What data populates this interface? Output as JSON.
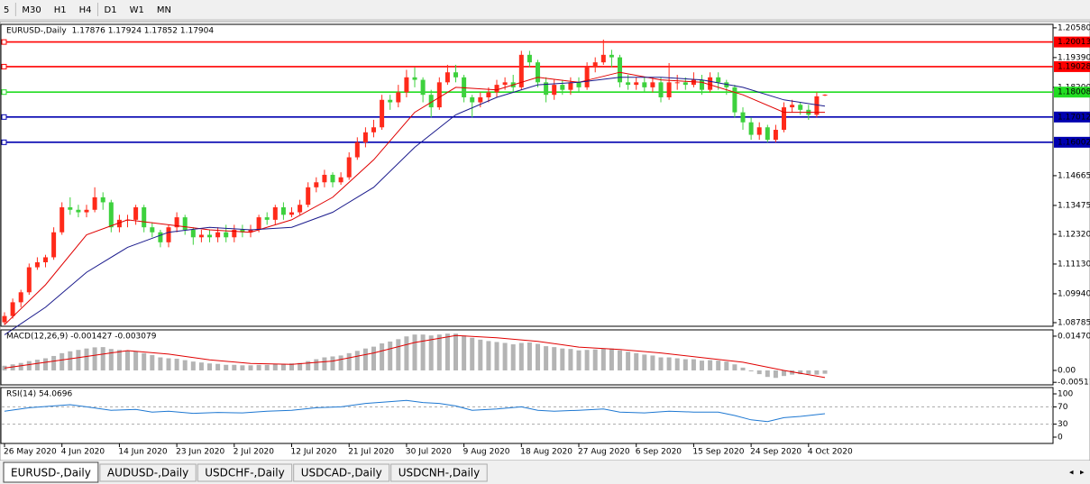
{
  "toolbar": {
    "timeframes": [
      "5",
      "M30",
      "H1",
      "H4",
      "D1",
      "W1",
      "MN"
    ]
  },
  "tabs": [
    "EURUSD-,Daily",
    "AUDUSD-,Daily",
    "USDCHF-,Daily",
    "USDCAD-,Daily",
    "USDCNH-,Daily"
  ],
  "chart_data": [
    {
      "type": "candlestick",
      "title": "EURUSD-,Daily",
      "quote": "1.17876 1.17924 1.17852 1.17904",
      "up_color": "#ff2a1a",
      "down_color": "#3dd13d",
      "xlim": [
        -0.55,
        127.8
      ],
      "ylim": [
        1.0864,
        1.2072
      ],
      "yticks": [
        {
          "value": 1.2058,
          "label": "1.20580"
        },
        {
          "value": 1.1939,
          "label": "1.19390"
        },
        {
          "value": 1.182,
          "label": "1.18200"
        },
        {
          "value": 1.14665,
          "label": "1.14665"
        },
        {
          "value": 1.13475,
          "label": "1.13475"
        },
        {
          "value": 1.1232,
          "label": "1.12320"
        },
        {
          "value": 1.1113,
          "label": "1.11130"
        },
        {
          "value": 1.0994,
          "label": "1.09940"
        },
        1.08785
      ],
      "xticks": [
        {
          "value": 0,
          "label": "26 May 2020"
        },
        {
          "value": 7,
          "label": "4 Jun 2020"
        },
        {
          "value": 14,
          "label": "14 Jun 2020"
        },
        {
          "value": 21,
          "label": "23 Jun 2020"
        },
        {
          "value": 28,
          "label": "2 Jul 2020"
        },
        {
          "value": 35,
          "label": "12 Jul 2020"
        },
        {
          "value": 42,
          "label": "21 Jul 2020"
        },
        {
          "value": 49,
          "label": "30 Jul 2020"
        },
        {
          "value": 56,
          "label": "9 Aug 2020"
        },
        {
          "value": 63,
          "label": "18 Aug 2020"
        },
        {
          "value": 70,
          "label": "27 Aug 2020"
        },
        {
          "value": 77,
          "label": "6 Sep 2020"
        },
        {
          "value": 84,
          "label": "15 Sep 2020"
        },
        {
          "value": 91,
          "label": "24 Sep 2020"
        },
        {
          "value": 98,
          "label": "4 Oct 2020"
        }
      ],
      "levels": [
        {
          "value": 1.20013,
          "color": "#ff0000"
        },
        {
          "value": 1.19028,
          "color": "#ff0000"
        },
        {
          "value": 1.18008,
          "color": "#22dd22"
        },
        {
          "value": 1.17012,
          "color": "#0000b0"
        },
        {
          "value": 1.16002,
          "color": "#0000b0"
        }
      ],
      "candles": [
        [
          1.088,
          1.092,
          1.087,
          1.0905
        ],
        [
          1.0905,
          1.0975,
          1.0895,
          1.096
        ],
        [
          1.096,
          1.101,
          1.094,
          1.1
        ],
        [
          1.1,
          1.1115,
          1.099,
          1.11
        ],
        [
          1.11,
          1.114,
          1.109,
          1.112
        ],
        [
          1.112,
          1.115,
          1.11,
          1.114
        ],
        [
          1.114,
          1.126,
          1.113,
          1.124
        ],
        [
          1.124,
          1.136,
          1.123,
          1.134
        ],
        [
          1.134,
          1.138,
          1.131,
          1.133
        ],
        [
          1.133,
          1.135,
          1.13,
          1.132
        ],
        [
          1.132,
          1.135,
          1.13,
          1.133
        ],
        [
          1.133,
          1.142,
          1.132,
          1.138
        ],
        [
          1.138,
          1.14,
          1.133,
          1.136
        ],
        [
          1.136,
          1.137,
          1.124,
          1.126
        ],
        [
          1.126,
          1.131,
          1.124,
          1.129
        ],
        [
          1.129,
          1.131,
          1.126,
          1.129
        ],
        [
          1.129,
          1.135,
          1.127,
          1.134
        ],
        [
          1.134,
          1.135,
          1.124,
          1.126
        ],
        [
          1.126,
          1.128,
          1.122,
          1.124
        ],
        [
          1.124,
          1.125,
          1.118,
          1.12
        ],
        [
          1.12,
          1.127,
          1.118,
          1.126
        ],
        [
          1.126,
          1.132,
          1.124,
          1.13
        ],
        [
          1.13,
          1.131,
          1.123,
          1.125
        ],
        [
          1.125,
          1.126,
          1.119,
          1.122
        ],
        [
          1.122,
          1.125,
          1.12,
          1.123
        ],
        [
          1.123,
          1.125,
          1.12,
          1.122
        ],
        [
          1.122,
          1.126,
          1.12,
          1.124
        ],
        [
          1.124,
          1.127,
          1.12,
          1.122
        ],
        [
          1.122,
          1.127,
          1.12,
          1.125
        ],
        [
          1.125,
          1.127,
          1.122,
          1.124
        ],
        [
          1.124,
          1.127,
          1.122,
          1.125
        ],
        [
          1.125,
          1.131,
          1.124,
          1.13
        ],
        [
          1.13,
          1.132,
          1.127,
          1.129
        ],
        [
          1.129,
          1.135,
          1.127,
          1.134
        ],
        [
          1.134,
          1.136,
          1.129,
          1.131
        ],
        [
          1.131,
          1.134,
          1.13,
          1.132
        ],
        [
          1.132,
          1.137,
          1.131,
          1.135
        ],
        [
          1.135,
          1.144,
          1.134,
          1.142
        ],
        [
          1.142,
          1.146,
          1.14,
          1.144
        ],
        [
          1.144,
          1.149,
          1.142,
          1.147
        ],
        [
          1.147,
          1.148,
          1.142,
          1.144
        ],
        [
          1.144,
          1.148,
          1.143,
          1.146
        ],
        [
          1.146,
          1.156,
          1.145,
          1.154
        ],
        [
          1.154,
          1.162,
          1.153,
          1.16
        ],
        [
          1.16,
          1.166,
          1.158,
          1.164
        ],
        [
          1.164,
          1.169,
          1.162,
          1.166
        ],
        [
          1.166,
          1.179,
          1.165,
          1.177
        ],
        [
          1.177,
          1.179,
          1.173,
          1.176
        ],
        [
          1.176,
          1.183,
          1.174,
          1.18
        ],
        [
          1.18,
          1.189,
          1.178,
          1.186
        ],
        [
          1.186,
          1.19,
          1.182,
          1.185
        ],
        [
          1.185,
          1.186,
          1.176,
          1.179
        ],
        [
          1.179,
          1.181,
          1.17,
          1.174
        ],
        [
          1.174,
          1.186,
          1.173,
          1.184
        ],
        [
          1.184,
          1.191,
          1.183,
          1.188
        ],
        [
          1.188,
          1.191,
          1.184,
          1.186
        ],
        [
          1.186,
          1.187,
          1.176,
          1.178
        ],
        [
          1.178,
          1.179,
          1.17,
          1.176
        ],
        [
          1.176,
          1.18,
          1.174,
          1.178
        ],
        [
          1.178,
          1.182,
          1.176,
          1.18
        ],
        [
          1.18,
          1.185,
          1.178,
          1.183
        ],
        [
          1.183,
          1.186,
          1.181,
          1.184
        ],
        [
          1.184,
          1.187,
          1.18,
          1.182
        ],
        [
          1.182,
          1.1966,
          1.181,
          1.195
        ],
        [
          1.195,
          1.1966,
          1.19,
          1.192
        ],
        [
          1.192,
          1.193,
          1.182,
          1.184
        ],
        [
          1.184,
          1.186,
          1.176,
          1.179
        ],
        [
          1.179,
          1.185,
          1.177,
          1.183
        ],
        [
          1.183,
          1.185,
          1.179,
          1.181
        ],
        [
          1.181,
          1.186,
          1.179,
          1.184
        ],
        [
          1.184,
          1.186,
          1.18,
          1.182
        ],
        [
          1.182,
          1.192,
          1.181,
          1.19
        ],
        [
          1.19,
          1.194,
          1.188,
          1.192
        ],
        [
          1.192,
          1.2011,
          1.191,
          1.195
        ],
        [
          1.195,
          1.197,
          1.19,
          1.194
        ],
        [
          1.194,
          1.195,
          1.182,
          1.184
        ],
        [
          1.184,
          1.187,
          1.181,
          1.183
        ],
        [
          1.183,
          1.186,
          1.181,
          1.184
        ],
        [
          1.184,
          1.186,
          1.18,
          1.182
        ],
        [
          1.182,
          1.186,
          1.18,
          1.184
        ],
        [
          1.184,
          1.186,
          1.176,
          1.178
        ],
        [
          1.178,
          1.1917,
          1.177,
          1.184
        ],
        [
          1.184,
          1.187,
          1.181,
          1.184
        ],
        [
          1.184,
          1.186,
          1.181,
          1.183
        ],
        [
          1.183,
          1.188,
          1.182,
          1.185
        ],
        [
          1.185,
          1.187,
          1.179,
          1.181
        ],
        [
          1.181,
          1.188,
          1.18,
          1.186
        ],
        [
          1.186,
          1.188,
          1.181,
          1.184
        ],
        [
          1.184,
          1.185,
          1.179,
          1.182
        ],
        [
          1.182,
          1.183,
          1.17,
          1.172
        ],
        [
          1.172,
          1.174,
          1.165,
          1.168
        ],
        [
          1.168,
          1.17,
          1.161,
          1.163
        ],
        [
          1.163,
          1.168,
          1.161,
          1.166
        ],
        [
          1.166,
          1.167,
          1.16,
          1.161
        ],
        [
          1.161,
          1.167,
          1.16,
          1.165
        ],
        [
          1.165,
          1.176,
          1.164,
          1.174
        ],
        [
          1.174,
          1.177,
          1.172,
          1.175
        ],
        [
          1.175,
          1.176,
          1.171,
          1.173
        ],
        [
          1.173,
          1.175,
          1.169,
          1.171
        ],
        [
          1.171,
          1.18,
          1.17,
          1.1784
        ],
        [
          1.17876,
          1.17924,
          1.17852,
          1.17904
        ]
      ],
      "series": [
        {
          "color": "#e00000",
          "x": [
            0,
            5,
            10,
            15,
            20,
            25,
            30,
            35,
            40,
            45,
            50,
            55,
            60,
            65,
            70,
            75,
            80,
            85,
            90,
            95,
            100
          ],
          "values": [
            1.087,
            1.103,
            1.123,
            1.129,
            1.127,
            1.125,
            1.124,
            1.129,
            1.138,
            1.153,
            1.172,
            1.182,
            1.181,
            1.186,
            1.184,
            1.188,
            1.185,
            1.184,
            1.179,
            1.172,
            1.172
          ]
        },
        {
          "color": "#1a1a8c",
          "x": [
            0,
            5,
            10,
            15,
            20,
            25,
            30,
            35,
            40,
            45,
            50,
            55,
            60,
            65,
            70,
            75,
            80,
            85,
            90,
            95,
            100
          ],
          "values": [
            1.083,
            1.094,
            1.108,
            1.118,
            1.124,
            1.126,
            1.125,
            1.126,
            1.132,
            1.142,
            1.158,
            1.171,
            1.178,
            1.183,
            1.184,
            1.186,
            1.186,
            1.185,
            1.182,
            1.177,
            1.1745
          ]
        }
      ]
    },
    {
      "type": "bar",
      "title": "MACD(12,26,9) -0.001427 -0.003079",
      "color": "#b4b4b4",
      "xlim": [
        -0.55,
        127.8
      ],
      "ylim": [
        -0.0062,
        0.0174
      ],
      "yticks": [
        0.014706,
        {
          "value": 0,
          "label": "0.00"
        },
        -0.005113
      ],
      "values": [
        0.002,
        0.0026,
        0.0032,
        0.004,
        0.0046,
        0.0052,
        0.0062,
        0.0074,
        0.0082,
        0.0088,
        0.0094,
        0.0099,
        0.01,
        0.0092,
        0.0088,
        0.0084,
        0.0082,
        0.0074,
        0.0066,
        0.0056,
        0.0052,
        0.005,
        0.0044,
        0.0038,
        0.0034,
        0.003,
        0.0028,
        0.0024,
        0.0024,
        0.0022,
        0.0022,
        0.0024,
        0.0024,
        0.0028,
        0.0028,
        0.003,
        0.0032,
        0.004,
        0.0048,
        0.0056,
        0.006,
        0.0064,
        0.0074,
        0.0084,
        0.0094,
        0.0102,
        0.0116,
        0.0124,
        0.0134,
        0.0146,
        0.0154,
        0.0154,
        0.015,
        0.0154,
        0.0158,
        0.0158,
        0.015,
        0.014,
        0.0132,
        0.0126,
        0.0122,
        0.0118,
        0.0112,
        0.0118,
        0.012,
        0.0114,
        0.0104,
        0.01,
        0.0094,
        0.0092,
        0.0086,
        0.0088,
        0.009,
        0.0094,
        0.0094,
        0.0086,
        0.008,
        0.0074,
        0.0068,
        0.0064,
        0.0056,
        0.0056,
        0.0052,
        0.0048,
        0.0048,
        0.0042,
        0.0044,
        0.0042,
        0.0038,
        0.0026,
        0.0012,
        -0.0004,
        -0.0016,
        -0.0028,
        -0.0032,
        -0.0024,
        -0.0018,
        -0.0016,
        -0.0016,
        -0.0018,
        -0.001427
      ],
      "series": [
        {
          "color": "#e00000",
          "x": [
            0,
            10,
            15,
            20,
            25,
            30,
            35,
            40,
            45,
            50,
            55,
            60,
            65,
            70,
            75,
            80,
            85,
            90,
            95,
            100
          ],
          "values": [
            0.001,
            0.006,
            0.0085,
            0.007,
            0.0045,
            0.003,
            0.0026,
            0.004,
            0.0075,
            0.012,
            0.015,
            0.014,
            0.0125,
            0.01,
            0.009,
            0.0075,
            0.0055,
            0.0035,
            0.0,
            -0.003079
          ]
        }
      ]
    },
    {
      "type": "line",
      "title": "RSI(14) 54.0696",
      "xlim": [
        -0.55,
        127.8
      ],
      "ylim": [
        -14.6,
        114.6
      ],
      "yticks": [
        100,
        70,
        30,
        0
      ],
      "levels": [
        70,
        30
      ],
      "series": [
        {
          "color": "#1e78d2",
          "x": [
            0,
            3,
            6,
            8,
            10,
            13,
            16,
            18,
            20,
            23,
            26,
            29,
            32,
            35,
            38,
            41,
            44,
            47,
            49,
            51,
            53,
            55,
            57,
            60,
            63,
            65,
            67,
            70,
            73,
            75,
            78,
            81,
            84,
            87,
            89,
            91,
            93,
            95,
            97,
            99,
            100
          ],
          "values": [
            60,
            68,
            72,
            75,
            70,
            62,
            64,
            58,
            60,
            55,
            57,
            56,
            60,
            62,
            68,
            70,
            78,
            82,
            85,
            80,
            78,
            72,
            62,
            65,
            70,
            62,
            60,
            62,
            65,
            58,
            56,
            60,
            58,
            58,
            50,
            40,
            36,
            45,
            48,
            52,
            54.0696
          ]
        }
      ]
    }
  ]
}
